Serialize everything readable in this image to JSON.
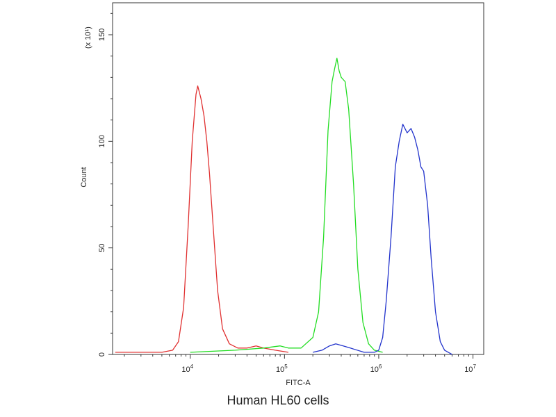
{
  "chart_data": {
    "type": "line",
    "title": "",
    "xlabel": "FITC-A",
    "ylabel": "Count",
    "y_multiplier_label": "(x 10¹)",
    "x_scale": "log",
    "xlim": [
      1500,
      13000000
    ],
    "ylim": [
      0,
      165
    ],
    "x_ticks": [
      {
        "value": 10000,
        "base": "10",
        "exp": "4"
      },
      {
        "value": 100000,
        "base": "10",
        "exp": "5"
      },
      {
        "value": 1000000,
        "base": "10",
        "exp": "6"
      },
      {
        "value": 10000000,
        "base": "10",
        "exp": "7"
      }
    ],
    "y_ticks": [
      0,
      50,
      100,
      150
    ],
    "grid": false,
    "series": [
      {
        "color": "#e03030",
        "x": [
          1600,
          3000,
          5000,
          6500,
          7500,
          8500,
          9500,
          10500,
          11500,
          12000,
          13000,
          14000,
          15000,
          16000,
          17500,
          19500,
          22000,
          26000,
          32000,
          40000,
          50000,
          60000,
          80000,
          110000
        ],
        "y": [
          1,
          1,
          1,
          2,
          6,
          22,
          60,
          100,
          122,
          126,
          120,
          112,
          100,
          85,
          60,
          30,
          12,
          5,
          3,
          3,
          4,
          3,
          2,
          1
        ]
      },
      {
        "color": "#22dd22",
        "x": [
          10000,
          30000,
          60000,
          90000,
          110000,
          150000,
          200000,
          230000,
          260000,
          290000,
          320000,
          340000,
          360000,
          380000,
          400000,
          440000,
          480000,
          540000,
          600000,
          680000,
          780000,
          900000,
          1100000
        ],
        "y": [
          1,
          2,
          3,
          4,
          3,
          3,
          8,
          20,
          55,
          105,
          128,
          134,
          139,
          133,
          130,
          128,
          115,
          80,
          40,
          15,
          5,
          2,
          1
        ]
      },
      {
        "color": "#2233cc",
        "x": [
          200000,
          250000,
          300000,
          350000,
          420000,
          500000,
          700000,
          900000,
          1000000,
          1100000,
          1200000,
          1350000,
          1500000,
          1650000,
          1800000,
          2000000,
          2200000,
          2400000,
          2600000,
          2800000,
          3000000,
          3300000,
          3600000,
          4000000,
          4500000,
          5000000,
          6000000
        ],
        "y": [
          1,
          2,
          4,
          5,
          4,
          3,
          1,
          1,
          2,
          8,
          25,
          55,
          88,
          100,
          108,
          104,
          106,
          102,
          96,
          88,
          86,
          70,
          45,
          20,
          6,
          2,
          0
        ]
      }
    ]
  },
  "caption": "Human HL60 cells"
}
